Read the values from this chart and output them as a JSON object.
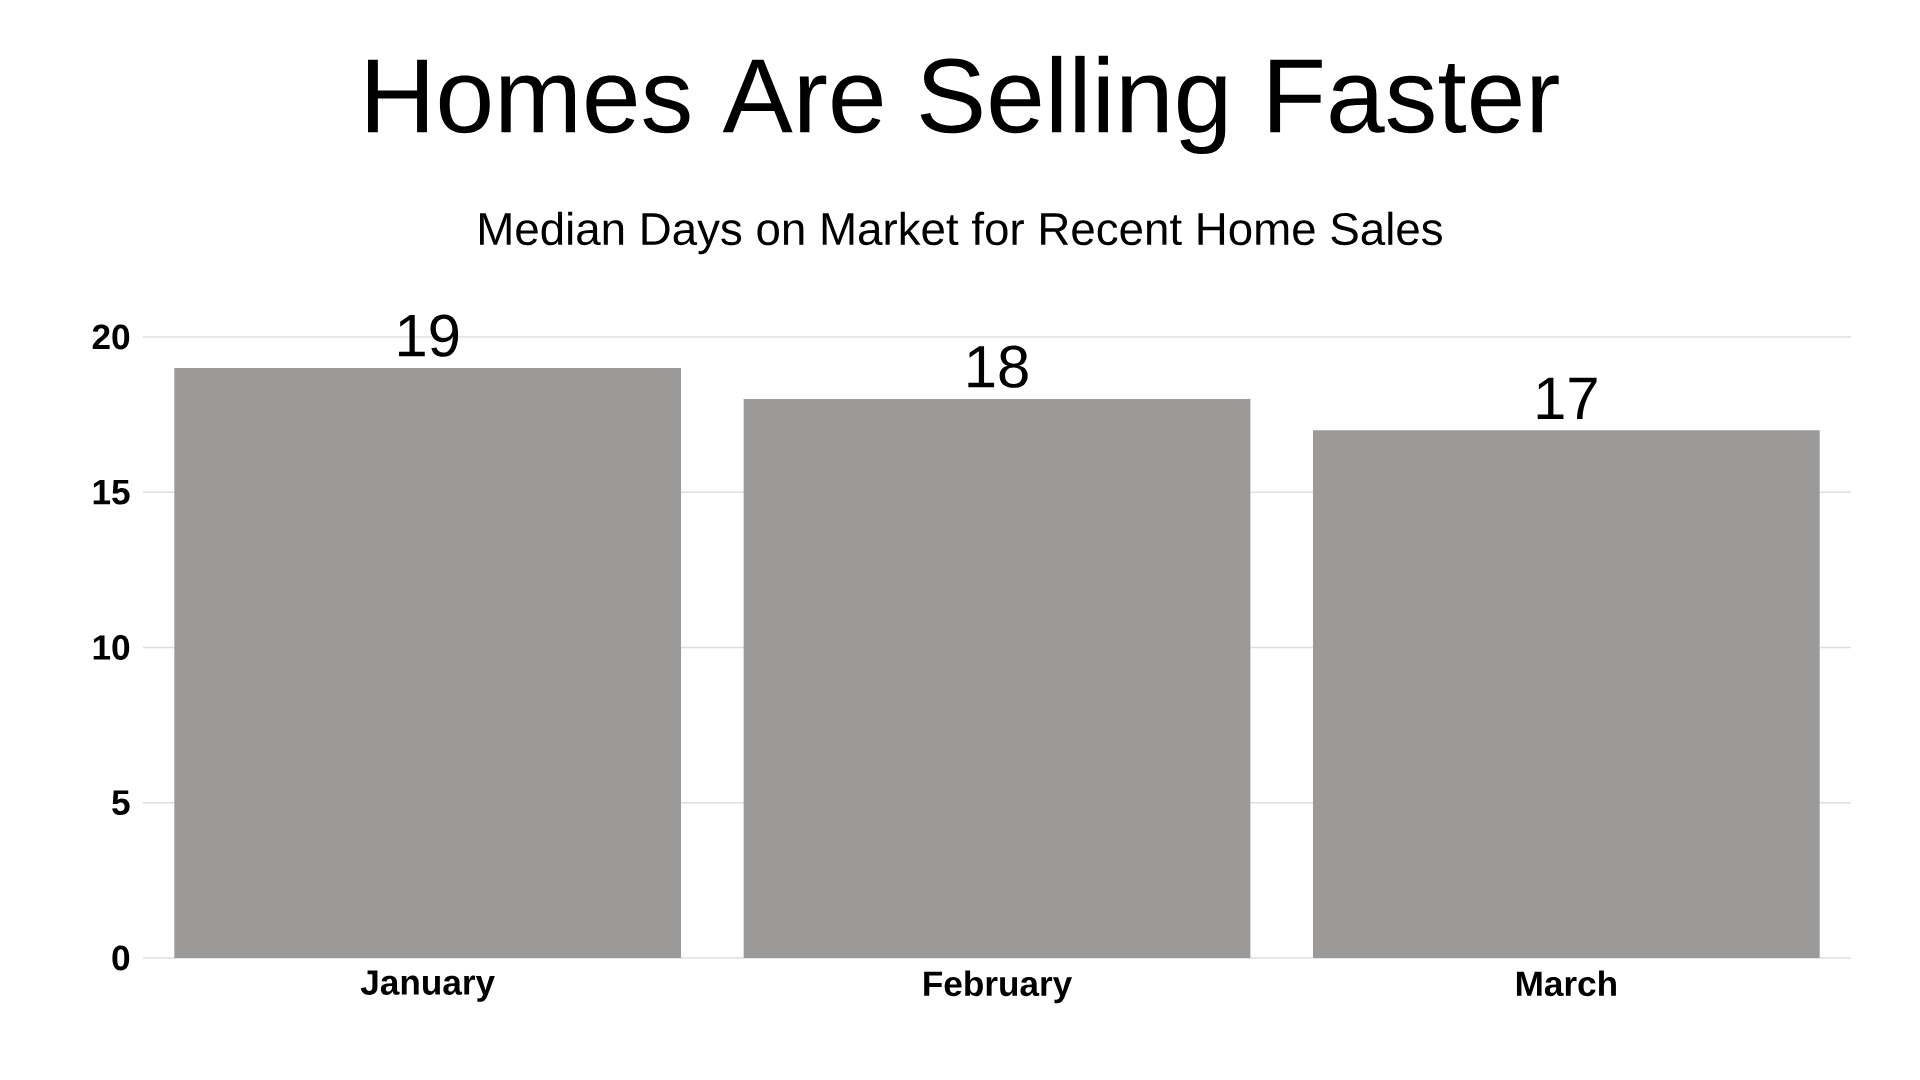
{
  "chart_data": {
    "type": "bar",
    "title": "Homes Are Selling Faster",
    "subtitle": "Median Days on Market for Recent Home Sales",
    "categories": [
      "January",
      "February",
      "March"
    ],
    "values": [
      19,
      18,
      17
    ],
    "color": "#9b9a99",
    "ylim": [
      0,
      20
    ],
    "yticks": [
      0,
      5,
      10,
      15,
      20
    ],
    "grid": "y",
    "data_labels": true
  }
}
